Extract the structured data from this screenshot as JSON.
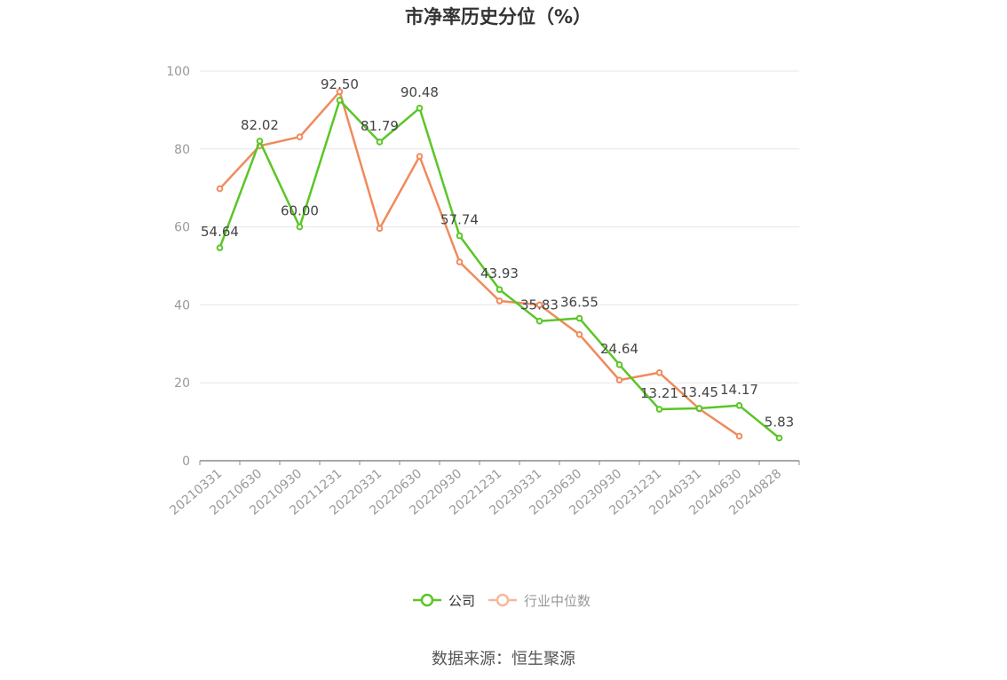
{
  "chart_data": {
    "type": "line",
    "title": "市净率历史分位（%）",
    "ylim": [
      0,
      100
    ],
    "yticks": [
      0,
      20,
      40,
      60,
      80,
      100
    ],
    "categories": [
      "20210331",
      "20210630",
      "20210930",
      "20211231",
      "20220331",
      "20220630",
      "20220930",
      "20221231",
      "20230331",
      "20230630",
      "20230930",
      "20231231",
      "20240331",
      "20240630",
      "20240828"
    ],
    "series": [
      {
        "name": "公司",
        "color": "#5ac626",
        "values": [
          54.64,
          82.02,
          60.0,
          92.5,
          81.79,
          90.48,
          57.74,
          43.93,
          35.83,
          36.55,
          24.64,
          13.21,
          13.45,
          14.17,
          5.83
        ],
        "labels": [
          "54.64",
          "82.02",
          "60.00",
          "92.50",
          "81.79",
          "90.48",
          "57.74",
          "43.93",
          "35.83",
          "36.55",
          "24.64",
          "13.21",
          "13.45",
          "14.17",
          "5.83"
        ]
      },
      {
        "name": "行业中位数",
        "color": "#f08a5c",
        "values": [
          69.8,
          80.8,
          83.1,
          94.7,
          59.6,
          78.1,
          51.0,
          41.0,
          40.0,
          32.4,
          20.7,
          22.6,
          13.3,
          6.3,
          null
        ]
      }
    ],
    "legend_position": "bottom",
    "grid": true
  },
  "source": "数据来源：恒生聚源"
}
